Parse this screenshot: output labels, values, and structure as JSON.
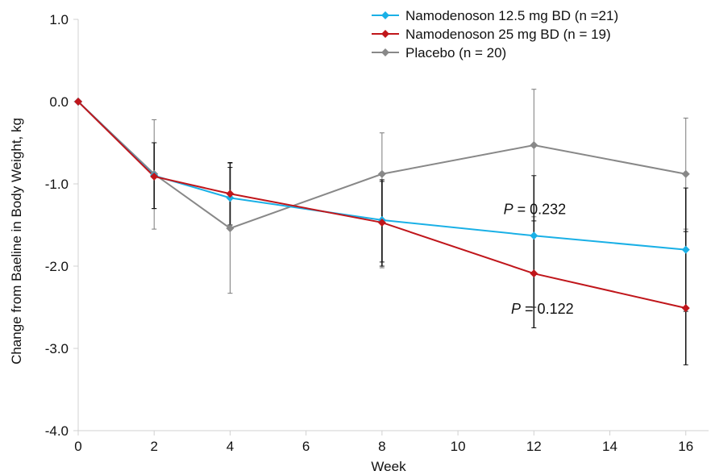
{
  "chart_data": {
    "type": "line",
    "title": "",
    "xlabel": "Week",
    "ylabel": "Change from Baeline  in Body Weight, kg",
    "xlim": [
      0,
      16.6
    ],
    "ylim": [
      -4.0,
      1.0
    ],
    "x_ticks": [
      0,
      2,
      4,
      6,
      8,
      10,
      12,
      14,
      16
    ],
    "y_ticks": [
      1.0,
      0.0,
      -1.0,
      -2.0,
      -3.0,
      -4.0
    ],
    "y_tick_labels": [
      "1.0",
      "0.0",
      "-1.0",
      "-2.0",
      "-3.0",
      "-4.0"
    ],
    "grid": false,
    "legend_position": "top-right",
    "series": [
      {
        "name": "Namodenoson 12.5 mg BD (n =21)",
        "color": "#1ab0e6",
        "marker": "diamond",
        "x": [
          0,
          2,
          4,
          8,
          12,
          16
        ],
        "y": [
          0.0,
          -0.9,
          -1.17,
          -1.44,
          -1.63,
          -1.8
        ],
        "err_low": [
          0.0,
          -1.3,
          -1.5,
          -1.95,
          -2.5,
          -2.55
        ],
        "err_high": [
          0.0,
          -0.5,
          -0.8,
          -0.95,
          -0.9,
          -1.05
        ]
      },
      {
        "name": "Namodenoson 25 mg BD (n = 19)",
        "color": "#c0161b",
        "marker": "diamond",
        "x": [
          0,
          2,
          4,
          8,
          12,
          16
        ],
        "y": [
          0.0,
          -0.91,
          -1.12,
          -1.47,
          -2.09,
          -2.51
        ],
        "err_low": [
          0.0,
          -1.3,
          -1.5,
          -2.0,
          -2.75,
          -3.2
        ],
        "err_high": [
          0.0,
          -0.5,
          -0.74,
          -0.97,
          -1.45,
          -1.58
        ]
      },
      {
        "name": "Placebo (n = 20)",
        "color": "#888888",
        "marker": "diamond",
        "x": [
          0,
          2,
          4,
          8,
          12,
          16
        ],
        "y": [
          0.0,
          -0.88,
          -1.54,
          -0.88,
          -0.53,
          -0.88
        ],
        "err_low": [
          0.0,
          -1.55,
          -2.33,
          -2.02,
          -1.4,
          -1.55
        ],
        "err_high": [
          0.0,
          -0.22,
          -0.75,
          -0.38,
          0.15,
          -0.2
        ]
      }
    ],
    "annotations": [
      {
        "italic": "P",
        "text": " = 0.232",
        "x": 11.2,
        "y": -1.3
      },
      {
        "italic": "P",
        "text": " = 0.122",
        "x": 11.4,
        "y": -2.51
      }
    ]
  }
}
